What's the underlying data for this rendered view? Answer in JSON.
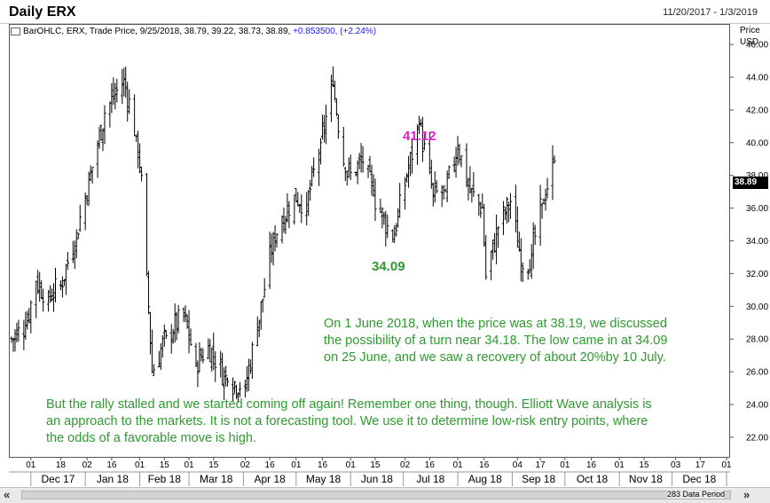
{
  "title": "Daily ERX",
  "date_range": "11/20/2017 - 1/3/2019",
  "info_line_black": "BarOHLC, ERX, Trade Price, 9/25/2018, 38.79, 39.22, 38.73, 38.89, ",
  "info_line_blue": "+0.853500, (+2.24%)",
  "price_axis_title": [
    "Price",
    "USD"
  ],
  "last_price": "38.89",
  "high_label": "41.12",
  "low_label": "34.09",
  "annotation_1": "On 1 June 2018, when the price was at 38.19, we discussed the possibility of a turn near 34.18. The low came in at 34.09 on 25 June, and we saw a recovery of about 20%by 10 July.",
  "annotation_2": "But the rally stalled and we started coming off again! Remember one thing, though. Elliott Wave analysis is an approach to the markets. It is not a forecasting tool. We use it to determine low-risk entry points, where the odds of a favorable move is high.",
  "data_period": "283 Data Period",
  "scroll_left": "«",
  "scroll_right": "»",
  "colors": {
    "bars": "#000000",
    "annotation": "#2f9a2f",
    "high_label": "#e020d0",
    "info_change": "#1a1aff"
  },
  "chart_data": {
    "type": "ohlc",
    "title": "Daily ERX",
    "y_axis": {
      "ticks": [
        "22.00",
        "24.00",
        "26.00",
        "28.00",
        "30.00",
        "32.00",
        "34.00",
        "36.00",
        "38.00",
        "40.00",
        "42.00",
        "44.00",
        "46.00"
      ],
      "range": [
        20.8,
        47.2
      ],
      "unit": "USD"
    },
    "x_day_ticks": [
      "01",
      "18",
      "02",
      "16",
      "01",
      "15",
      "01",
      "15",
      "02",
      "16",
      "01",
      "16",
      "01",
      "15",
      "02",
      "16",
      "01",
      "16",
      "04",
      "17",
      "01",
      "16",
      "01",
      "15",
      "03",
      "17",
      "01"
    ],
    "x_month_labels": [
      "Dec 17",
      "Jan 18",
      "Feb 18",
      "Mar 18",
      "Apr 18",
      "May 18",
      "Jun 18",
      "Jul 18",
      "Aug 18",
      "Sep 18",
      "Oct 18",
      "Nov 18",
      "Dec 18"
    ],
    "anchors": [
      {
        "date": "2017-11-20",
        "close": 28.0
      },
      {
        "date": "2017-11-28",
        "close": 28.8
      },
      {
        "date": "2017-12-04",
        "close": 31.5
      },
      {
        "date": "2017-12-11",
        "close": 30.6
      },
      {
        "date": "2017-12-18",
        "close": 31.3
      },
      {
        "date": "2017-12-27",
        "close": 34.5
      },
      {
        "date": "2018-01-05",
        "close": 38.5
      },
      {
        "date": "2018-01-12",
        "close": 41.8
      },
      {
        "date": "2018-01-23",
        "close": 43.9
      },
      {
        "date": "2018-01-30",
        "close": 40.4
      },
      {
        "date": "2018-02-02",
        "close": 38.0
      },
      {
        "date": "2018-02-05",
        "close": 32.0
      },
      {
        "date": "2018-02-08",
        "close": 26.0
      },
      {
        "date": "2018-02-16",
        "close": 28.2
      },
      {
        "date": "2018-02-26",
        "close": 29.4
      },
      {
        "date": "2018-03-05",
        "close": 26.5
      },
      {
        "date": "2018-03-12",
        "close": 27.6
      },
      {
        "date": "2018-03-23",
        "close": 25.4
      },
      {
        "date": "2018-04-02",
        "close": 25.2
      },
      {
        "date": "2018-04-09",
        "close": 28.7
      },
      {
        "date": "2018-04-18",
        "close": 34.2
      },
      {
        "date": "2018-04-30",
        "close": 36.8
      },
      {
        "date": "2018-05-07",
        "close": 36.2
      },
      {
        "date": "2018-05-15",
        "close": 40.0
      },
      {
        "date": "2018-05-22",
        "close": 43.5
      },
      {
        "date": "2018-05-29",
        "close": 38.2
      },
      {
        "date": "2018-06-01",
        "close": 38.19
      },
      {
        "date": "2018-06-08",
        "close": 38.8
      },
      {
        "date": "2018-06-14",
        "close": 36.8
      },
      {
        "date": "2018-06-25",
        "close": 34.09
      },
      {
        "date": "2018-07-03",
        "close": 38.0
      },
      {
        "date": "2018-07-10",
        "close": 41.12
      },
      {
        "date": "2018-07-18",
        "close": 36.8
      },
      {
        "date": "2018-07-25",
        "close": 37.0
      },
      {
        "date": "2018-08-01",
        "close": 39.8
      },
      {
        "date": "2018-08-08",
        "close": 37.0
      },
      {
        "date": "2018-08-15",
        "close": 36.0
      },
      {
        "date": "2018-08-17",
        "close": 31.8
      },
      {
        "date": "2018-08-24",
        "close": 34.8
      },
      {
        "date": "2018-08-31",
        "close": 36.4
      },
      {
        "date": "2018-09-07",
        "close": 32.3
      },
      {
        "date": "2018-09-12",
        "close": 33.2
      },
      {
        "date": "2018-09-18",
        "close": 36.3
      },
      {
        "date": "2018-09-25",
        "close": 38.89
      }
    ],
    "last_bar": {
      "date": "2018-09-25",
      "open": 38.79,
      "high": 39.22,
      "low": 38.73,
      "close": 38.89
    }
  }
}
